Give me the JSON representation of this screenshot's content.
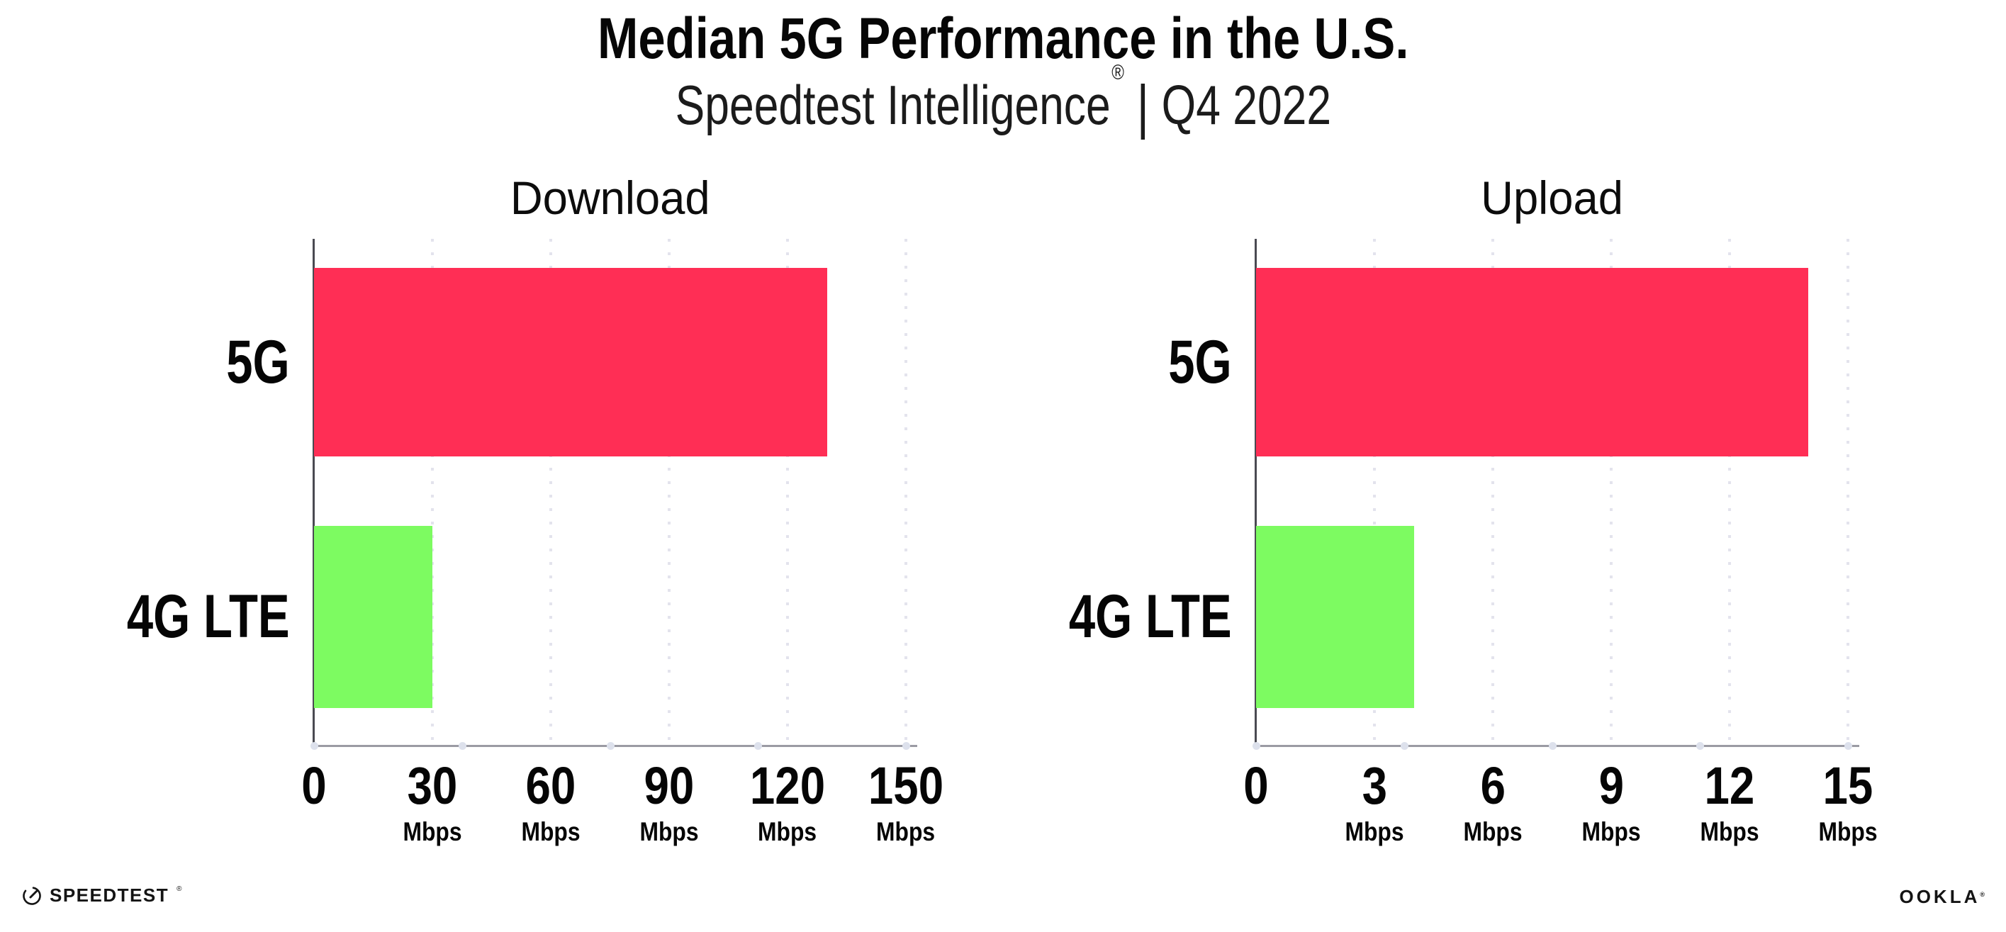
{
  "header": {
    "title": "Median 5G Performance in the U.S.",
    "subtitle": {
      "brand": "Speedtest Intelligence",
      "registered": "®",
      "separator": "|",
      "period": "Q4 2022"
    }
  },
  "chart_data": [
    {
      "type": "bar",
      "orientation": "horizontal",
      "title": "Download",
      "categories": [
        "5G",
        "4G LTE"
      ],
      "values": [
        130,
        30
      ],
      "unit": "Mbps",
      "xlim": [
        0,
        150
      ],
      "xticks": [
        0,
        30,
        60,
        90,
        120,
        150
      ],
      "bar_colors": [
        "#ff2e55",
        "#7dfb61"
      ],
      "grid": "dotted-vertical",
      "legend": "none"
    },
    {
      "type": "bar",
      "orientation": "horizontal",
      "title": "Upload",
      "categories": [
        "5G",
        "4G LTE"
      ],
      "values": [
        14,
        4
      ],
      "unit": "Mbps",
      "xlim": [
        0,
        15
      ],
      "xticks": [
        0,
        3,
        6,
        9,
        12,
        15
      ],
      "bar_colors": [
        "#ff2e55",
        "#7dfb61"
      ],
      "grid": "dotted-vertical",
      "legend": "none"
    }
  ],
  "footer": {
    "speedtest": {
      "label": "SPEEDTEST",
      "mark": "®",
      "icon": "speedtest-gauge-icon"
    },
    "ookla": {
      "label": "OOKLA",
      "mark": "®"
    }
  },
  "colors": {
    "bar_5g": "#ff2e55",
    "bar_4g_lte": "#7dfb61",
    "axis_x_line": "#9b9ba3",
    "axis_y_line": "#4a4a52",
    "grid_dot": "#e3e3ed",
    "axis_marker_dot": "#dde1ec",
    "text": "#060606",
    "background": "#ffffff"
  }
}
